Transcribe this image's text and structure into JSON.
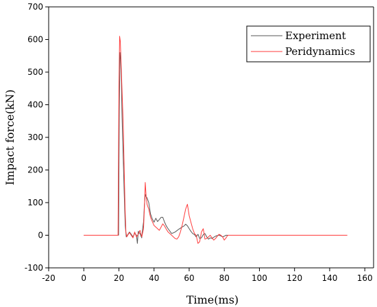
{
  "chart_data": {
    "type": "line",
    "title": "",
    "xlabel": "Time(ms)",
    "ylabel": "Impact force(kN)",
    "xlim": [
      -20,
      165
    ],
    "ylim": [
      -100,
      700
    ],
    "xticks": [
      -20,
      0,
      20,
      40,
      60,
      80,
      100,
      120,
      140,
      160
    ],
    "yticks": [
      -100,
      0,
      100,
      200,
      300,
      400,
      500,
      600,
      700
    ],
    "grid": false,
    "legend": "top-right",
    "series": [
      {
        "name": "Experiment",
        "color": "#555555",
        "x": [
          0,
          19.8,
          20.2,
          20.6,
          21.0,
          21.4,
          21.8,
          22.4,
          23.0,
          23.6,
          24.2,
          24.8,
          25.4,
          26,
          27,
          28,
          29,
          30,
          30.5,
          31,
          32,
          33,
          33.5,
          34,
          34.5,
          35,
          35.5,
          36,
          37,
          38,
          39,
          40,
          41,
          42,
          43,
          44,
          45,
          46,
          47,
          48,
          50,
          52,
          54,
          56,
          57,
          58,
          59,
          60,
          61,
          62,
          63,
          64,
          65,
          66,
          67,
          68,
          69,
          70,
          71,
          72,
          73,
          74,
          75,
          76,
          77,
          78,
          79,
          80,
          81,
          82,
          150
        ],
        "y": [
          0,
          0,
          380,
          560,
          540,
          470,
          360,
          250,
          130,
          30,
          -5,
          0,
          5,
          10,
          3,
          -5,
          6,
          0,
          -25,
          12,
          5,
          -8,
          20,
          40,
          90,
          125,
          118,
          115,
          100,
          65,
          50,
          40,
          52,
          42,
          48,
          55,
          55,
          40,
          28,
          20,
          5,
          10,
          18,
          25,
          28,
          34,
          29,
          20,
          12,
          5,
          2,
          -5,
          3,
          -10,
          -8,
          2,
          5,
          -5,
          -12,
          -8,
          -10,
          -6,
          -3,
          -1,
          0,
          -2,
          -5,
          -3,
          0,
          0,
          0
        ]
      },
      {
        "name": "Peridynamics",
        "color": "#ff3b3b",
        "x": [
          0,
          19.5,
          20.0,
          20.4,
          20.8,
          21.2,
          21.6,
          22.0,
          22.5,
          23.0,
          23.5,
          24.0,
          24.5,
          25,
          26,
          27,
          28,
          29,
          30,
          31,
          32,
          33,
          34,
          34.5,
          35,
          35.5,
          36,
          37,
          38,
          39,
          40,
          41,
          42,
          43,
          44,
          45,
          46,
          47,
          48,
          49,
          50,
          51,
          52,
          53,
          54,
          55,
          56,
          57,
          58,
          59,
          60,
          61,
          62,
          63,
          64,
          65,
          66,
          67,
          68,
          69,
          70,
          71,
          72,
          73,
          74,
          75,
          76,
          77,
          78,
          79,
          80,
          81,
          82,
          150
        ],
        "y": [
          0,
          0,
          450,
          610,
          595,
          530,
          470,
          410,
          330,
          200,
          80,
          10,
          -5,
          0,
          8,
          0,
          -8,
          10,
          -5,
          3,
          15,
          -5,
          20,
          80,
          162,
          120,
          95,
          80,
          55,
          42,
          30,
          25,
          20,
          15,
          25,
          35,
          28,
          18,
          10,
          5,
          0,
          -5,
          -10,
          -12,
          -5,
          10,
          30,
          55,
          80,
          95,
          60,
          40,
          20,
          5,
          0,
          -25,
          -20,
          10,
          20,
          -12,
          -10,
          -5,
          0,
          -8,
          -15,
          -10,
          -3,
          3,
          0,
          -5,
          -15,
          -8,
          0,
          0
        ]
      }
    ]
  }
}
